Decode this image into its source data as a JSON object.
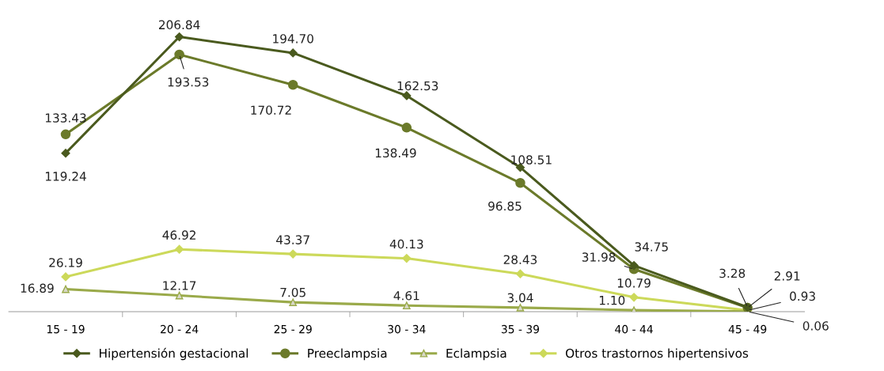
{
  "chart_data": {
    "type": "line",
    "categories": [
      "15 - 19",
      "20 - 24",
      "25 - 29",
      "30 - 34",
      "35 - 39",
      "40 - 44",
      "45 - 49"
    ],
    "series": [
      {
        "name": "Hipertensión gestacional",
        "color": "#4a5a1e",
        "marker": "diamond",
        "values": [
          119.24,
          206.84,
          194.7,
          162.53,
          108.51,
          34.75,
          3.28
        ],
        "value_labels": [
          "119.24",
          "206.84",
          "194.70",
          "162.53",
          "108.51",
          "34.75",
          "3.28"
        ]
      },
      {
        "name": "Preeclampsia",
        "color": "#6b7a2a",
        "marker": "circle",
        "values": [
          133.43,
          193.53,
          170.72,
          138.49,
          96.85,
          31.98,
          2.91
        ],
        "value_labels": [
          "133.43",
          "193.53",
          "170.72",
          "138.49",
          "96.85",
          "31.98",
          "2.91"
        ]
      },
      {
        "name": "Eclampsia",
        "color": "#9aaa4a",
        "marker": "triangle",
        "values": [
          16.89,
          12.17,
          7.05,
          4.61,
          3.04,
          1.1,
          0.06
        ],
        "value_labels": [
          "16.89",
          "12.17",
          "7.05",
          "4.61",
          "3.04",
          "1.10",
          "0.06"
        ]
      },
      {
        "name": "Otros trastornos hipertensivos",
        "color": "#ccd95a",
        "marker": "diamond",
        "values": [
          26.19,
          46.92,
          43.37,
          40.13,
          28.43,
          10.79,
          0.93
        ],
        "value_labels": [
          "26.19",
          "46.92",
          "43.37",
          "40.13",
          "28.43",
          "10.79",
          "0.93"
        ]
      }
    ],
    "grid": false,
    "legend": "bottom",
    "tick_labels": "x"
  }
}
